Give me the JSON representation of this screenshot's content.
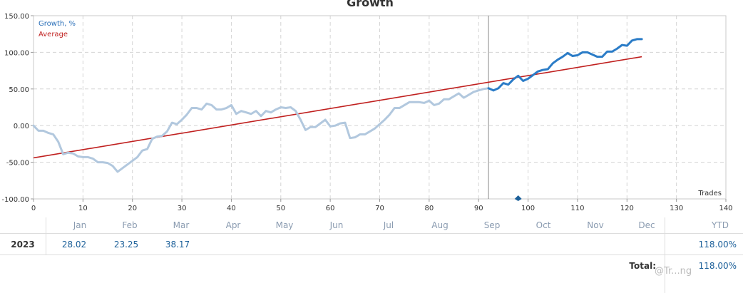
{
  "chart_data": {
    "type": "line",
    "title": "Growth",
    "xlim": [
      0,
      140
    ],
    "ylim": [
      -100,
      150
    ],
    "x_ticks": [
      0,
      10,
      20,
      30,
      40,
      50,
      60,
      70,
      80,
      90,
      100,
      110,
      120,
      130,
      140
    ],
    "y_ticks": [
      -100,
      -50,
      0,
      50,
      100,
      150
    ],
    "y_tick_labels": [
      "-100.00",
      "-50.00",
      "0.00",
      "50.00",
      "100.00",
      "150.00"
    ],
    "corner_label": "Trades",
    "grid": true,
    "legend": "top-left",
    "series": [
      {
        "name": "Growth, %",
        "color": "#2b7cc7",
        "history_color": "#b2c8de",
        "history_until_x": 92,
        "x": [
          0,
          1,
          2,
          3,
          4,
          5,
          6,
          7,
          8,
          9,
          10,
          11,
          12,
          13,
          14,
          15,
          16,
          17,
          18,
          19,
          20,
          21,
          22,
          23,
          24,
          25,
          26,
          27,
          28,
          29,
          30,
          31,
          32,
          33,
          34,
          35,
          36,
          37,
          38,
          39,
          40,
          41,
          42,
          43,
          44,
          45,
          46,
          47,
          48,
          49,
          50,
          51,
          52,
          53,
          54,
          55,
          56,
          57,
          58,
          59,
          60,
          61,
          62,
          63,
          64,
          65,
          66,
          67,
          68,
          69,
          70,
          71,
          72,
          73,
          74,
          75,
          76,
          77,
          78,
          79,
          80,
          81,
          82,
          83,
          84,
          85,
          86,
          87,
          88,
          89,
          90,
          91,
          92,
          93,
          94,
          95,
          96,
          97,
          98,
          99,
          100,
          101,
          102,
          103,
          104,
          105,
          106,
          107,
          108,
          109,
          110,
          111,
          112,
          113,
          114,
          115,
          116,
          117,
          118,
          119,
          120,
          121,
          122,
          123
        ],
        "y": [
          0,
          -7,
          -7,
          -10,
          -12,
          -22,
          -39,
          -37,
          -38,
          -42,
          -43,
          -43,
          -45,
          -50,
          -50,
          -51,
          -55,
          -63,
          -58,
          -53,
          -48,
          -43,
          -34,
          -32,
          -18,
          -15,
          -14,
          -8,
          4,
          2,
          8,
          15,
          24,
          24,
          22,
          30,
          28,
          22,
          22,
          24,
          28,
          16,
          20,
          18,
          16,
          20,
          13,
          20,
          18,
          22,
          25,
          24,
          25,
          20,
          8,
          -6,
          -2,
          -2,
          3,
          8,
          -1,
          0,
          3,
          4,
          -17,
          -16,
          -12,
          -12,
          -8,
          -4,
          2,
          8,
          15,
          24,
          24,
          28,
          32,
          32,
          32,
          31,
          34,
          28,
          30,
          36,
          36,
          40,
          44,
          38,
          42,
          46,
          48,
          50,
          51,
          48,
          51,
          58,
          56,
          63,
          68,
          61,
          64,
          69,
          74,
          76,
          77,
          85,
          90,
          94,
          99,
          95,
          96,
          100,
          100,
          97,
          94,
          94,
          101,
          101,
          105,
          110,
          109,
          116,
          118,
          118
        ],
        "marker_x": 98,
        "marker_y": -100
      },
      {
        "name": "Average",
        "color": "#c0201f",
        "x": [
          0,
          123
        ],
        "y": [
          -44,
          94
        ]
      }
    ]
  },
  "table": {
    "months": [
      "Jan",
      "Feb",
      "Mar",
      "Apr",
      "May",
      "Jun",
      "Jul",
      "Aug",
      "Sep",
      "Oct",
      "Nov",
      "Dec"
    ],
    "ytd_label": "YTD",
    "rows": [
      {
        "year": "2023",
        "values": [
          "28.02",
          "23.25",
          "38.17",
          "",
          "",
          "",
          "",
          "",
          "",
          "",
          "",
          ""
        ],
        "ytd": "118.00%"
      }
    ],
    "total_label": "Total:",
    "total_value": "118.00%"
  },
  "watermark": "@Tr...ng"
}
